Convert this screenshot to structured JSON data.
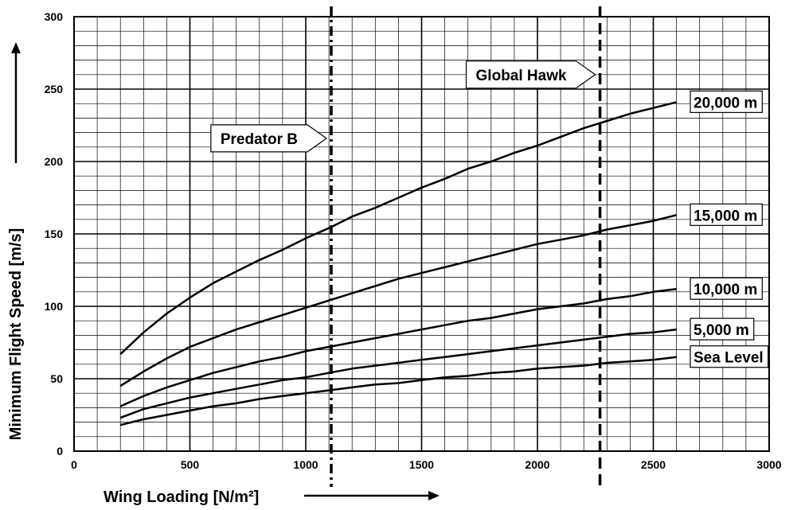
{
  "chart_data": {
    "type": "line",
    "xlabel": "Wing Loading [N/m²]",
    "ylabel": "Minimum Flight Speed [m/s]",
    "xlim": [
      0,
      3000
    ],
    "ylim": [
      0,
      300
    ],
    "xticks": [
      0,
      500,
      1000,
      1500,
      2000,
      2500,
      3000
    ],
    "yticks": [
      0,
      50,
      100,
      150,
      200,
      250,
      300
    ],
    "grid": true,
    "x": [
      200,
      300,
      400,
      500,
      600,
      700,
      800,
      900,
      1000,
      1100,
      1200,
      1300,
      1400,
      1500,
      1600,
      1700,
      1800,
      1900,
      2000,
      2100,
      2200,
      2300,
      2400,
      2500,
      2600
    ],
    "series": [
      {
        "name": "20,000 m",
        "values": [
          67,
          82,
          95,
          106,
          116,
          124,
          132,
          139,
          147,
          154,
          162,
          168,
          175,
          182,
          188,
          195,
          200,
          206,
          211,
          217,
          223,
          228,
          233,
          237,
          241
        ]
      },
      {
        "name": "15,000 m",
        "values": [
          45,
          55,
          64,
          72,
          78,
          84,
          89,
          94,
          99,
          104,
          109,
          114,
          119,
          123,
          127,
          131,
          135,
          139,
          143,
          146,
          149,
          153,
          156,
          159,
          163
        ]
      },
      {
        "name": "10,000 m",
        "values": [
          31,
          38,
          44,
          49,
          54,
          58,
          62,
          65,
          69,
          72,
          75,
          78,
          81,
          84,
          87,
          90,
          92,
          95,
          98,
          100,
          102,
          105,
          107,
          110,
          112
        ]
      },
      {
        "name": "5,000 m",
        "values": [
          23,
          29,
          33,
          37,
          40,
          43,
          46,
          49,
          51,
          54,
          57,
          59,
          61,
          63,
          65,
          67,
          69,
          71,
          73,
          75,
          77,
          79,
          81,
          82,
          84
        ]
      },
      {
        "name": "Sea Level",
        "values": [
          18,
          22,
          25,
          28,
          31,
          33,
          36,
          38,
          40,
          42,
          44,
          46,
          47,
          49,
          51,
          52,
          54,
          55,
          57,
          58,
          59,
          61,
          62,
          63,
          65
        ]
      }
    ],
    "reference_lines": [
      {
        "label": "Predator B",
        "x": 1110,
        "style": "dash-dot"
      },
      {
        "label": "Global Hawk",
        "x": 2270,
        "style": "dashed"
      }
    ]
  }
}
